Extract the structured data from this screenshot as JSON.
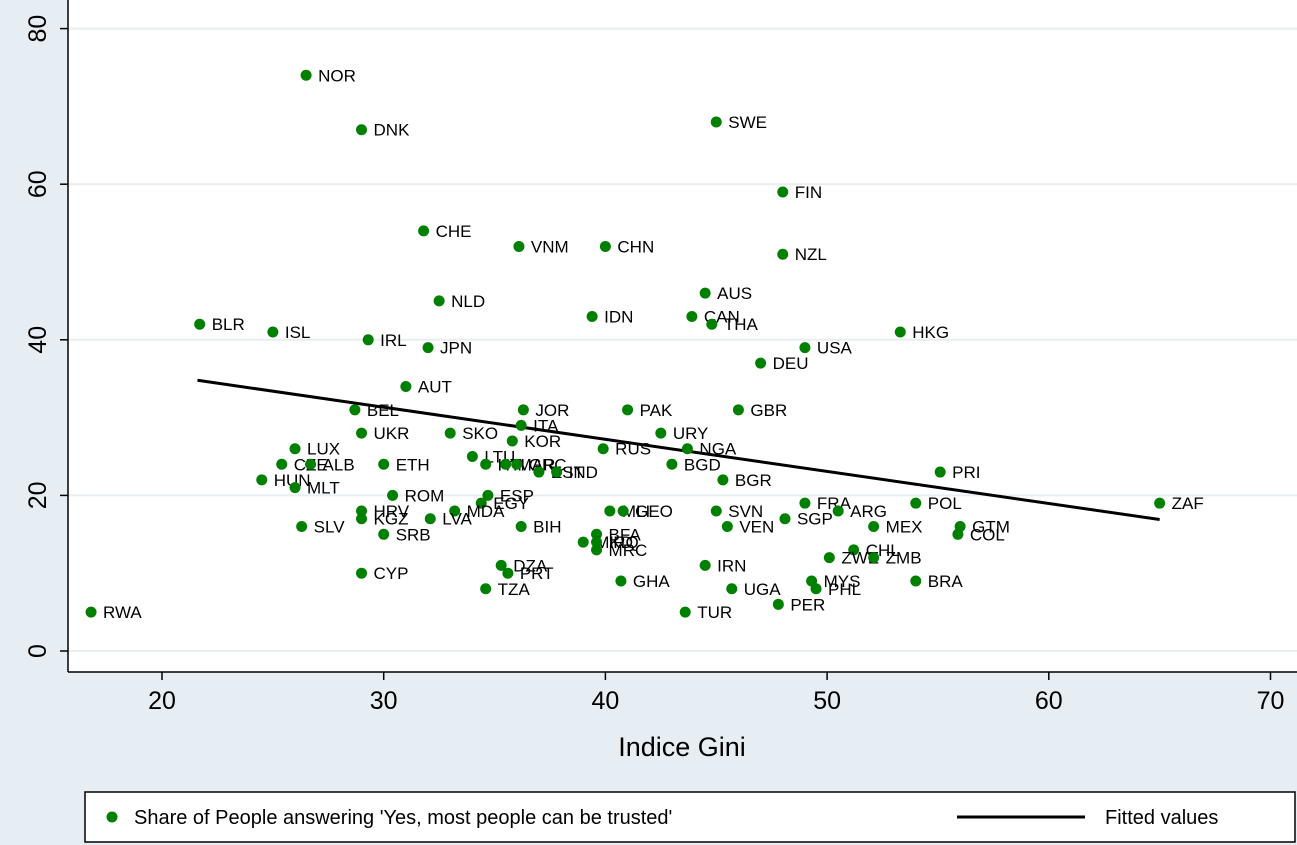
{
  "chart_data": {
    "type": "scatter",
    "xlabel": "Indice Gini",
    "ylabel": "",
    "xlim": [
      15,
      70
    ],
    "ylim": [
      -2,
      82
    ],
    "xticks": [
      20,
      30,
      40,
      50,
      60,
      70
    ],
    "yticks": [
      0,
      20,
      40,
      60,
      80
    ],
    "grid": "horizontal",
    "point_color": "#008000",
    "line_color": "#000000",
    "legend": {
      "position": "bottom",
      "entries": [
        {
          "label": "Share of People answering 'Yes, most people can be trusted'",
          "marker": "dot",
          "color": "#008000"
        },
        {
          "label": "Fitted values",
          "marker": "line",
          "color": "#000000"
        }
      ]
    },
    "fitted_line": {
      "x": [
        21.6,
        65.0
      ],
      "y": [
        34.8,
        16.9
      ]
    },
    "points": [
      {
        "label": "NOR",
        "x": 26.5,
        "y": 74
      },
      {
        "label": "DNK",
        "x": 29.0,
        "y": 67
      },
      {
        "label": "SWE",
        "x": 45.0,
        "y": 68
      },
      {
        "label": "FIN",
        "x": 48.0,
        "y": 59
      },
      {
        "label": "CHE",
        "x": 31.8,
        "y": 54
      },
      {
        "label": "VNM",
        "x": 36.1,
        "y": 52
      },
      {
        "label": "CHN",
        "x": 40.0,
        "y": 52
      },
      {
        "label": "NZL",
        "x": 48.0,
        "y": 51
      },
      {
        "label": "NLD",
        "x": 32.5,
        "y": 45
      },
      {
        "label": "AUS",
        "x": 44.5,
        "y": 46
      },
      {
        "label": "IDN",
        "x": 39.4,
        "y": 43
      },
      {
        "label": "CAN",
        "x": 43.9,
        "y": 43
      },
      {
        "label": "THA",
        "x": 44.8,
        "y": 42
      },
      {
        "label": "BLR",
        "x": 21.7,
        "y": 42
      },
      {
        "label": "ISL",
        "x": 25.0,
        "y": 41
      },
      {
        "label": "IRL",
        "x": 29.3,
        "y": 40
      },
      {
        "label": "JPN",
        "x": 32.0,
        "y": 39
      },
      {
        "label": "HKG",
        "x": 53.3,
        "y": 41
      },
      {
        "label": "USA",
        "x": 49.0,
        "y": 39
      },
      {
        "label": "DEU",
        "x": 47.0,
        "y": 37
      },
      {
        "label": "AUT",
        "x": 31.0,
        "y": 34
      },
      {
        "label": "BEL",
        "x": 28.7,
        "y": 31
      },
      {
        "label": "JOR",
        "x": 36.3,
        "y": 31
      },
      {
        "label": "PAK",
        "x": 41.0,
        "y": 31
      },
      {
        "label": "GBR",
        "x": 46.0,
        "y": 31
      },
      {
        "label": "ITA",
        "x": 36.2,
        "y": 29
      },
      {
        "label": "UKR",
        "x": 29.0,
        "y": 28
      },
      {
        "label": "SKO",
        "x": 33.0,
        "y": 28
      },
      {
        "label": "KOR",
        "x": 35.8,
        "y": 27
      },
      {
        "label": "URY",
        "x": 42.5,
        "y": 28
      },
      {
        "label": "LUX",
        "x": 26.0,
        "y": 26
      },
      {
        "label": "RUS",
        "x": 39.9,
        "y": 26
      },
      {
        "label": "NGA",
        "x": 43.7,
        "y": 26
      },
      {
        "label": "LTU",
        "x": 34.0,
        "y": 25
      },
      {
        "label": "CZE",
        "x": 25.4,
        "y": 24
      },
      {
        "label": "ALB",
        "x": 26.7,
        "y": 24
      },
      {
        "label": "ETH",
        "x": 30.0,
        "y": 24
      },
      {
        "label": "HTI",
        "x": 34.6,
        "y": 24
      },
      {
        "label": "MAR",
        "x": 35.5,
        "y": 24
      },
      {
        "label": "GRC",
        "x": 36.0,
        "y": 24
      },
      {
        "label": "EST",
        "x": 37.0,
        "y": 23
      },
      {
        "label": "IND",
        "x": 37.8,
        "y": 23
      },
      {
        "label": "BGD",
        "x": 43.0,
        "y": 24
      },
      {
        "label": "PRI",
        "x": 55.1,
        "y": 23
      },
      {
        "label": "HUN",
        "x": 24.5,
        "y": 22
      },
      {
        "label": "MLT",
        "x": 26.0,
        "y": 21
      },
      {
        "label": "BGR",
        "x": 45.3,
        "y": 22
      },
      {
        "label": "ROM",
        "x": 30.4,
        "y": 20
      },
      {
        "label": "ESP",
        "x": 34.7,
        "y": 20
      },
      {
        "label": "EGY",
        "x": 34.4,
        "y": 19
      },
      {
        "label": "FRA",
        "x": 49.0,
        "y": 19
      },
      {
        "label": "POL",
        "x": 54.0,
        "y": 19
      },
      {
        "label": "ZAF",
        "x": 65.0,
        "y": 19
      },
      {
        "label": "HRV",
        "x": 29.0,
        "y": 18
      },
      {
        "label": "MDA",
        "x": 33.2,
        "y": 18
      },
      {
        "label": "MLI",
        "x": 40.2,
        "y": 18
      },
      {
        "label": "GEO",
        "x": 40.8,
        "y": 18
      },
      {
        "label": "SVN",
        "x": 45.0,
        "y": 18
      },
      {
        "label": "ARG",
        "x": 50.5,
        "y": 18
      },
      {
        "label": "KGZ",
        "x": 29.0,
        "y": 17
      },
      {
        "label": "LVA",
        "x": 32.1,
        "y": 17
      },
      {
        "label": "SGP",
        "x": 48.1,
        "y": 17
      },
      {
        "label": "SLV",
        "x": 26.3,
        "y": 16
      },
      {
        "label": "BIH",
        "x": 36.2,
        "y": 16
      },
      {
        "label": "VEN",
        "x": 45.5,
        "y": 16
      },
      {
        "label": "MEX",
        "x": 52.1,
        "y": 16
      },
      {
        "label": "GTM",
        "x": 56.0,
        "y": 16
      },
      {
        "label": "SRB",
        "x": 30.0,
        "y": 15
      },
      {
        "label": "BFA",
        "x": 39.6,
        "y": 15
      },
      {
        "label": "COL",
        "x": 55.9,
        "y": 15
      },
      {
        "label": "MKD",
        "x": 39.0,
        "y": 14
      },
      {
        "label": "IRQ",
        "x": 39.6,
        "y": 14
      },
      {
        "label": "MRC",
        "x": 39.6,
        "y": 13
      },
      {
        "label": "CHL",
        "x": 51.2,
        "y": 13
      },
      {
        "label": "ZWE",
        "x": 50.1,
        "y": 12
      },
      {
        "label": "ZMB",
        "x": 52.1,
        "y": 12
      },
      {
        "label": "DZA",
        "x": 35.3,
        "y": 11
      },
      {
        "label": "IRN",
        "x": 44.5,
        "y": 11
      },
      {
        "label": "CYP",
        "x": 29.0,
        "y": 10
      },
      {
        "label": "PRT",
        "x": 35.6,
        "y": 10
      },
      {
        "label": "GHA",
        "x": 40.7,
        "y": 9
      },
      {
        "label": "MYS",
        "x": 49.3,
        "y": 9
      },
      {
        "label": "BRA",
        "x": 54.0,
        "y": 9
      },
      {
        "label": "TZA",
        "x": 34.6,
        "y": 8
      },
      {
        "label": "UGA",
        "x": 45.7,
        "y": 8
      },
      {
        "label": "PHL",
        "x": 49.5,
        "y": 8
      },
      {
        "label": "PER",
        "x": 47.8,
        "y": 6
      },
      {
        "label": "RWA",
        "x": 16.8,
        "y": 5
      },
      {
        "label": "TUR",
        "x": 43.6,
        "y": 5
      }
    ]
  }
}
